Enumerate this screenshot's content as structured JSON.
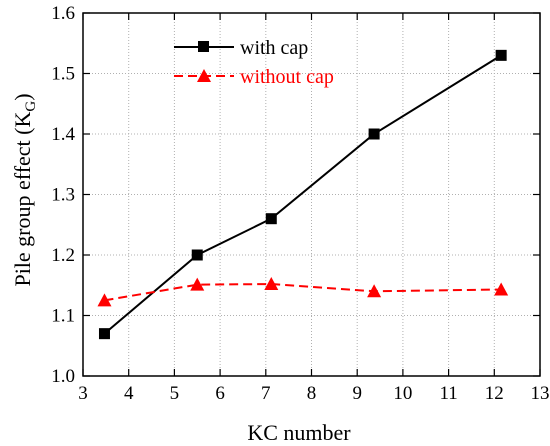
{
  "chart_data": {
    "type": "line",
    "xlabel": "KC number",
    "ylabel_main": "Pile group effect (K",
    "ylabel_sub": "G",
    "ylabel_close": ")",
    "xlim": [
      3,
      13
    ],
    "ylim": [
      1.0,
      1.6
    ],
    "x_ticks": [
      "3",
      "4",
      "5",
      "6",
      "7",
      "8",
      "9",
      "10",
      "11",
      "12",
      "13"
    ],
    "y_ticks": [
      "1.0",
      "1.1",
      "1.2",
      "1.3",
      "1.4",
      "1.5",
      "1.6"
    ],
    "grid": true,
    "legend_position": "top-center",
    "series": [
      {
        "name": "with cap",
        "color": "#000000",
        "line_style": "solid",
        "marker": "square",
        "x": [
          3.47,
          5.5,
          7.12,
          9.37,
          12.15
        ],
        "y": [
          1.07,
          1.2,
          1.26,
          1.4,
          1.53
        ]
      },
      {
        "name": "without cap",
        "color": "#ff0000",
        "line_style": "dashed",
        "marker": "triangle",
        "x": [
          3.47,
          5.5,
          7.12,
          9.37,
          12.15
        ],
        "y": [
          1.125,
          1.151,
          1.152,
          1.14,
          1.143
        ]
      }
    ]
  }
}
